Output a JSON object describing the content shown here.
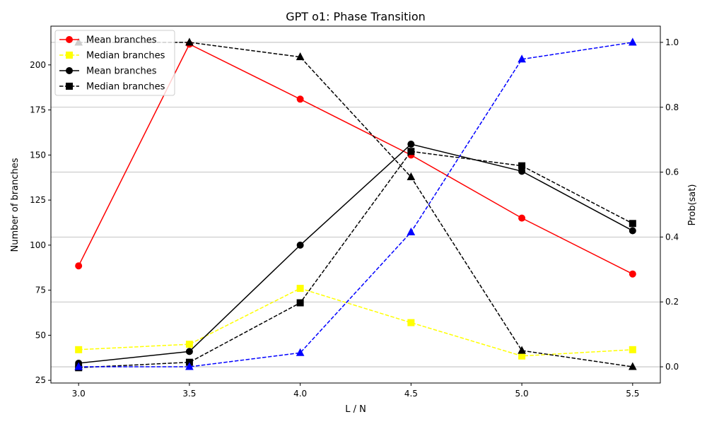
{
  "chart_data": {
    "type": "line",
    "title": "GPT o1: Phase Transition",
    "xlabel": "L / N",
    "ylabel": "Number of branches",
    "y2label": "Prob(sat)",
    "x": [
      3.0,
      3.5,
      4.0,
      4.5,
      5.0,
      5.5
    ],
    "x_ticks": [
      "3.0",
      "3.5",
      "4.0",
      "4.5",
      "5.0",
      "5.5"
    ],
    "xlim": [
      2.875,
      5.625
    ],
    "ylim": [
      23.5,
      221.5
    ],
    "y_ticks": [
      "25",
      "50",
      "75",
      "100",
      "125",
      "150",
      "175",
      "200"
    ],
    "y_tick_values": [
      25,
      50,
      75,
      100,
      125,
      150,
      175,
      200
    ],
    "y2lim": [
      -0.05,
      1.05
    ],
    "y2_ticks": [
      "0.0",
      "0.2",
      "0.4",
      "0.6",
      "0.8",
      "1.0"
    ],
    "y2_tick_values": [
      0.0,
      0.2,
      0.4,
      0.6,
      0.8,
      1.0
    ],
    "grid": "right-axis horizontal",
    "legend_position": "top-left",
    "series": [
      {
        "name": "Mean branches",
        "axis": "left",
        "color": "#ff0000",
        "dash": "solid",
        "marker": "circle",
        "values": [
          88.5,
          211.5,
          181,
          150,
          115,
          84
        ]
      },
      {
        "name": "Median branches",
        "axis": "left",
        "color": "#ffff00",
        "dash": "dashed",
        "marker": "square",
        "values": [
          42,
          45,
          76,
          57,
          38.5,
          42
        ]
      },
      {
        "axis": "right",
        "color": "#000000",
        "dash": "dashed",
        "marker": "triangle",
        "values": [
          1.0,
          1.0,
          0.955,
          0.585,
          0.05,
          0.0
        ]
      },
      {
        "name": "Mean branches",
        "axis": "left",
        "color": "#000000",
        "dash": "solid",
        "marker": "circle",
        "values": [
          34.5,
          41,
          100,
          156,
          141,
          108
        ]
      },
      {
        "name": "Median branches",
        "axis": "left",
        "color": "#000000",
        "dash": "dashed",
        "marker": "square",
        "values": [
          32,
          35,
          68,
          152,
          144,
          112
        ]
      },
      {
        "axis": "right",
        "color": "#0000ff",
        "dash": "dashed",
        "marker": "triangle",
        "values": [
          0.0,
          0.0,
          0.043,
          0.415,
          0.948,
          1.0
        ]
      }
    ],
    "legend": [
      {
        "label": "Mean branches",
        "color": "#ff0000",
        "dash": "solid",
        "marker": "circle"
      },
      {
        "label": "Median branches",
        "color": "#ffff00",
        "dash": "dashed",
        "marker": "square"
      },
      {
        "label": "Mean branches",
        "color": "#000000",
        "dash": "solid",
        "marker": "circle"
      },
      {
        "label": "Median branches",
        "color": "#000000",
        "dash": "dashed",
        "marker": "square"
      }
    ]
  }
}
